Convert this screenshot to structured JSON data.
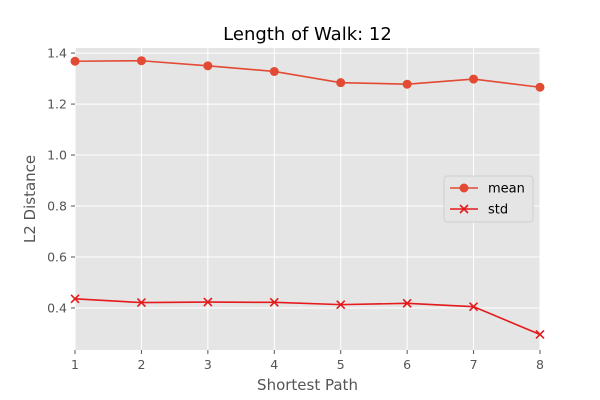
{
  "chart_data": {
    "type": "line",
    "title": "Length of Walk: 12",
    "xlabel": "Shortest Path",
    "ylabel": "L2 Distance",
    "x": [
      1,
      2,
      3,
      4,
      5,
      6,
      7,
      8
    ],
    "xlim": [
      1,
      8
    ],
    "ylim": [
      0.235,
      1.42
    ],
    "xticks": [
      "1",
      "2",
      "3",
      "4",
      "5",
      "6",
      "7",
      "8"
    ],
    "yticks": [
      "0.4",
      "0.6",
      "0.8",
      "1.0",
      "1.2",
      "1.4"
    ],
    "grid": true,
    "legend_position": "center-right",
    "series": [
      {
        "name": "mean",
        "marker": "circle",
        "color": "#E24A33",
        "values": [
          1.368,
          1.37,
          1.35,
          1.328,
          1.284,
          1.278,
          1.298,
          1.266
        ]
      },
      {
        "name": "std",
        "marker": "x",
        "color": "#E41A1C",
        "values": [
          0.436,
          0.421,
          0.423,
          0.422,
          0.413,
          0.418,
          0.405,
          0.296
        ]
      }
    ]
  },
  "colors": {
    "plot_background": "#E5E5E5",
    "grid": "#FFFFFF",
    "tick": "#555555"
  }
}
